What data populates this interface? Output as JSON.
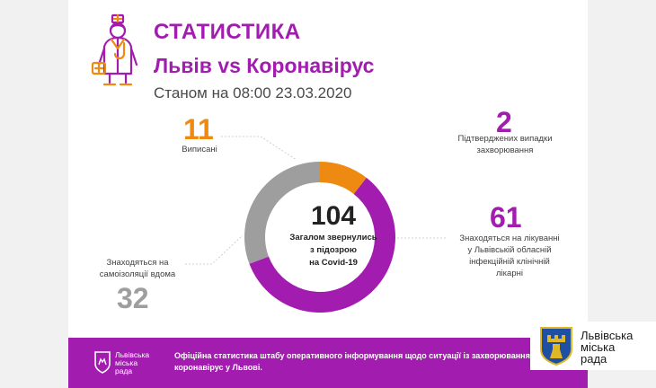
{
  "header": {
    "title": "СТАТИСТИКА",
    "subtitle": "Львів vs Коронавірус",
    "date": "Станом на 08:00 23.03.2020"
  },
  "stats": {
    "total": {
      "value": "104",
      "label_line1": "Загалом звернулись",
      "label_line2": "з підозрою",
      "label_line3": "на Covid-19"
    },
    "discharged": {
      "value": "11",
      "label": "Виписані"
    },
    "confirmed": {
      "value": "2",
      "label_line1": "Підтверджених випадки",
      "label_line2": "захворювання"
    },
    "treated": {
      "value": "61",
      "label_line1": "Знаходяться на лікуванні",
      "label_line2": "у Львівській обласній",
      "label_line3": "інфекційній клінічній",
      "label_line4": "лікарні"
    },
    "isolation": {
      "value": "32",
      "label_line1": "Знаходяться на",
      "label_line2": "самоізоляції вдома"
    }
  },
  "chart_data": {
    "type": "pie",
    "title": "Загалом звернулись з підозрою на Covid-19",
    "total": 104,
    "categories": [
      "Знаходяться на лікуванні у Львівській обласній інфекційній клінічній лікарні",
      "Знаходяться на самоізоляції вдома",
      "Виписані"
    ],
    "values": [
      61,
      32,
      11
    ],
    "colors": [
      "#a21caf",
      "#9e9e9e",
      "#ee8a12"
    ]
  },
  "footer": {
    "brand_line1": "Львівська",
    "brand_line2": "міська",
    "brand_line3": "рада",
    "text": "Офіційна статистика штабу оперативного інформування щодо ситуації із захворюванням на коронавірус у Львові."
  },
  "logo": {
    "line1": "Львівська",
    "line2": "міська",
    "line3": "рада"
  },
  "colors": {
    "accent": "#a21caf",
    "orange": "#ee8a12",
    "gray": "#9e9e9e"
  }
}
